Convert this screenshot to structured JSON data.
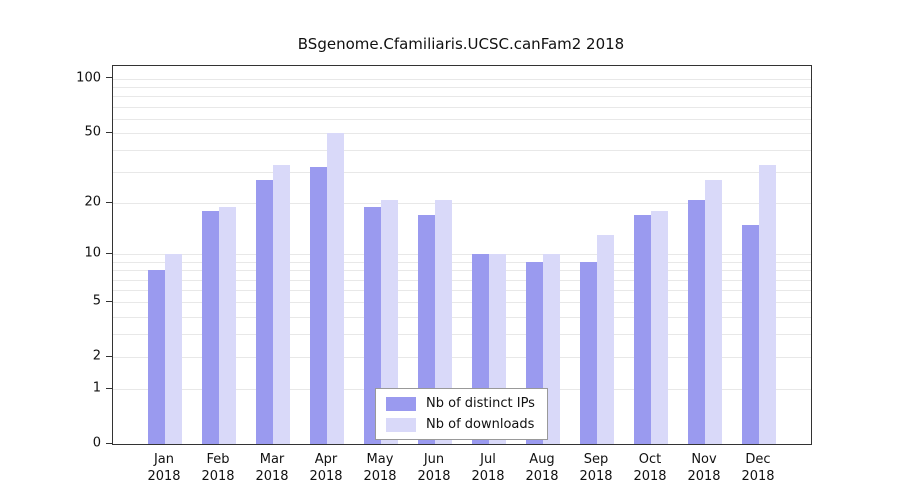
{
  "title": "BSgenome.Cfamiliaris.UCSC.canFam2 2018",
  "chart_data": {
    "type": "bar",
    "title": "BSgenome.Cfamiliaris.UCSC.canFam2 2018",
    "year": "2018",
    "categories": [
      "Jan",
      "Feb",
      "Mar",
      "Apr",
      "May",
      "Jun",
      "Jul",
      "Aug",
      "Sep",
      "Oct",
      "Nov",
      "Dec"
    ],
    "series": [
      {
        "name": "Nb of distinct IPs",
        "color": "#9a9aef",
        "values": [
          8,
          18,
          27,
          32,
          19,
          17,
          10,
          9,
          9,
          17,
          21,
          15
        ]
      },
      {
        "name": "Nb of downloads",
        "color": "#d9d9f9",
        "values": [
          10,
          19,
          33,
          50,
          21,
          21,
          10,
          10,
          13,
          18,
          27,
          33
        ]
      }
    ],
    "y_axis": {
      "scale": "log10(1+x)",
      "axis_max": 118,
      "tick_values": [
        0,
        1,
        2,
        5,
        10,
        20,
        50,
        100
      ],
      "tick_labels": [
        "0",
        "1",
        "2",
        "5",
        "10",
        "20",
        "50",
        "100"
      ]
    },
    "gridlines": [
      1,
      2,
      3,
      4,
      5,
      6,
      7,
      8,
      9,
      10,
      20,
      30,
      40,
      50,
      60,
      70,
      80,
      90,
      100
    ],
    "grid": true,
    "legend_position": "bottom-center",
    "ylim": [
      0,
      118
    ]
  }
}
